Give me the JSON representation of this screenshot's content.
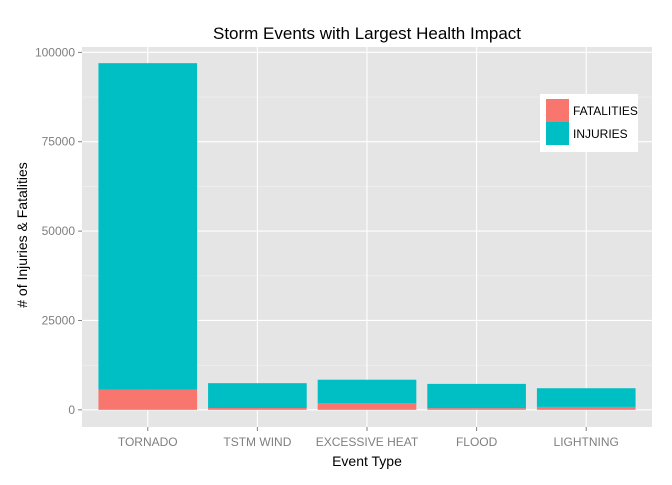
{
  "chart_data": {
    "type": "bar",
    "stacked": true,
    "title": "Storm Events with Largest Health Impact",
    "xlabel": "Event Type",
    "ylabel": "# of Injuries & Fatalities",
    "categories": [
      "TORNADO",
      "TSTM WIND",
      "EXCESSIVE HEAT",
      "FLOOD",
      "LIGHTNING"
    ],
    "series": [
      {
        "name": "FATALITIES",
        "color": "#F8766D",
        "values": [
          5633,
          504,
          1903,
          470,
          816
        ]
      },
      {
        "name": "INJURIES",
        "color": "#00BFC4",
        "values": [
          91346,
          6957,
          6525,
          6789,
          5230
        ]
      }
    ],
    "ylim": [
      -4800,
      101500
    ],
    "yticks": [
      0,
      25000,
      50000,
      75000,
      100000
    ],
    "yticklabels": [
      "0",
      "25000",
      "50000",
      "75000",
      "100000"
    ],
    "grid": true,
    "legend_position": "top-right",
    "colors": {
      "panel": "#E5E5E5",
      "grid_major": "#FFFFFF",
      "grid_minor": "#F2F2F2"
    }
  }
}
